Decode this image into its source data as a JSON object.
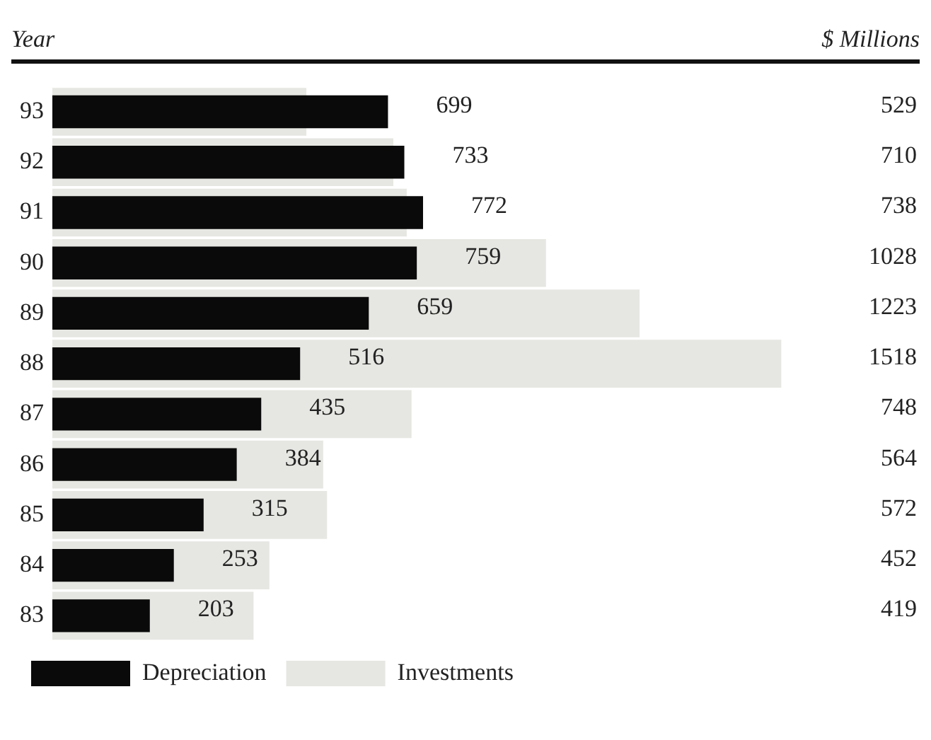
{
  "chart_data": {
    "type": "bar",
    "orientation": "horizontal",
    "ylabel": "Year",
    "xlabel": "$ Millions",
    "categories": [
      "93",
      "92",
      "91",
      "90",
      "89",
      "88",
      "87",
      "86",
      "85",
      "84",
      "83"
    ],
    "series": [
      {
        "name": "Depreciation",
        "color": "#0a0a0a",
        "values": [
          699,
          733,
          772,
          759,
          659,
          516,
          435,
          384,
          315,
          253,
          203
        ]
      },
      {
        "name": "Investments",
        "color": "#e6e6e2",
        "values": [
          529,
          710,
          738,
          1028,
          1223,
          1518,
          748,
          564,
          572,
          452,
          419
        ]
      }
    ],
    "data_labels": true,
    "legend": "bottom left",
    "grid": false
  }
}
